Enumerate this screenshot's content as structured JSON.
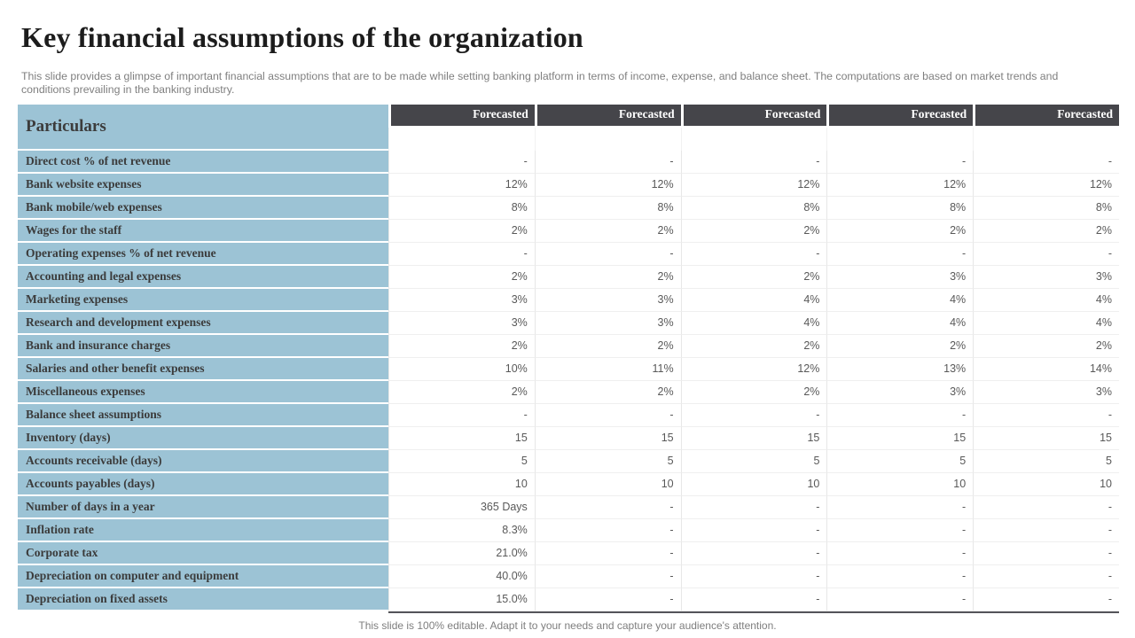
{
  "slide": {
    "title": "Key financial assumptions of the organization",
    "description": "This slide provides a glimpse of important financial assumptions that are to be made while setting banking platform in terms of income, expense, and balance sheet. The computations are based on market trends and conditions prevailing in the banking industry.",
    "footer": "This slide is 100% editable. Adapt it to your needs and capture your audience's attention."
  },
  "colors": {
    "accent_blue": "#9CC3D5",
    "header_dark": "#45454A",
    "title_text": "#1C1C1C",
    "label_text": "#3B3B3B",
    "value_text": "#595959",
    "muted_text": "#7F7F7F"
  },
  "table": {
    "row_header": "Particulars",
    "column_headers": [
      "Forecasted",
      "Forecasted",
      "Forecasted",
      "Forecasted",
      "Forecasted"
    ],
    "rows": [
      {
        "label": "Direct cost % of net revenue",
        "values": [
          "-",
          "-",
          "-",
          "-",
          "-"
        ]
      },
      {
        "label": "Bank website expenses",
        "values": [
          "12%",
          "12%",
          "12%",
          "12%",
          "12%"
        ]
      },
      {
        "label": "Bank mobile/web expenses",
        "values": [
          "8%",
          "8%",
          "8%",
          "8%",
          "8%"
        ]
      },
      {
        "label": "Wages for the staff",
        "values": [
          "2%",
          "2%",
          "2%",
          "2%",
          "2%"
        ]
      },
      {
        "label": "Operating expenses % of net revenue",
        "values": [
          "-",
          "-",
          "-",
          "-",
          "-"
        ]
      },
      {
        "label": "Accounting and legal expenses",
        "values": [
          "2%",
          "2%",
          "2%",
          "3%",
          "3%"
        ]
      },
      {
        "label": "Marketing expenses",
        "values": [
          "3%",
          "3%",
          "4%",
          "4%",
          "4%"
        ]
      },
      {
        "label": "Research and development expenses",
        "values": [
          "3%",
          "3%",
          "4%",
          "4%",
          "4%"
        ]
      },
      {
        "label": "Bank and insurance charges",
        "values": [
          "2%",
          "2%",
          "2%",
          "2%",
          "2%"
        ]
      },
      {
        "label": "Salaries and other benefit expenses",
        "values": [
          "10%",
          "11%",
          "12%",
          "13%",
          "14%"
        ]
      },
      {
        "label": "Miscellaneous expenses",
        "values": [
          "2%",
          "2%",
          "2%",
          "3%",
          "3%"
        ]
      },
      {
        "label": "Balance sheet assumptions",
        "values": [
          "-",
          "-",
          "-",
          "-",
          "-"
        ]
      },
      {
        "label": "Inventory (days)",
        "values": [
          "15",
          "15",
          "15",
          "15",
          "15"
        ]
      },
      {
        "label": "Accounts receivable (days)",
        "values": [
          "5",
          "5",
          "5",
          "5",
          "5"
        ]
      },
      {
        "label": "Accounts payables (days)",
        "values": [
          "10",
          "10",
          "10",
          "10",
          "10"
        ]
      },
      {
        "label": "Number of days in a year",
        "values": [
          "365 Days",
          "-",
          "-",
          "-",
          "-"
        ]
      },
      {
        "label": "Inflation rate",
        "values": [
          "8.3%",
          "-",
          "-",
          "-",
          "-"
        ]
      },
      {
        "label": "Corporate tax",
        "values": [
          "21.0%",
          "-",
          "-",
          "-",
          "-"
        ]
      },
      {
        "label": "Depreciation on computer and equipment",
        "values": [
          "40.0%",
          "-",
          "-",
          "-",
          "-"
        ]
      },
      {
        "label": "Depreciation on fixed assets",
        "values": [
          "15.0%",
          "-",
          "-",
          "-",
          "-"
        ]
      }
    ]
  }
}
